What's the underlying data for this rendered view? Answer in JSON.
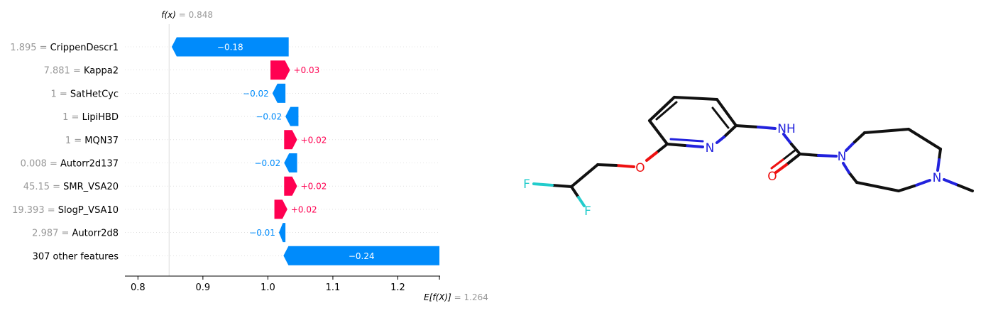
{
  "chart_data": {
    "type": "waterfall",
    "fx_label": "f(x)",
    "fx_value": "0.848",
    "ex_label": "E[f(X)]",
    "ex_value": "1.264",
    "base_value": 1.264,
    "final_value": 0.848,
    "xlim": [
      0.78,
      1.265
    ],
    "xticks": [
      0.8,
      0.9,
      1.0,
      1.1,
      1.2
    ],
    "xtick_labels": [
      "0.8",
      "0.9",
      "1.0",
      "1.1",
      "1.2"
    ],
    "colors": {
      "positive": "#ff0051",
      "negative": "#008bfb",
      "value_text": "#999999"
    },
    "features": [
      {
        "value": "1.895",
        "name": "CrippenDescr1",
        "contribution": -0.18,
        "label": "−0.18",
        "start": 1.032
      },
      {
        "value": "7.881",
        "name": "Kappa2",
        "contribution": 0.03,
        "label": "+0.03",
        "start": 1.004
      },
      {
        "value": "1",
        "name": "SatHetCyc",
        "contribution": -0.02,
        "label": "−0.02",
        "start": 1.027
      },
      {
        "value": "1",
        "name": "LipiHBD",
        "contribution": -0.02,
        "label": "−0.02",
        "start": 1.047
      },
      {
        "value": "1",
        "name": "MQN37",
        "contribution": 0.02,
        "label": "+0.02",
        "start": 1.025
      },
      {
        "value": "0.008",
        "name": "Autorr2d137",
        "contribution": -0.02,
        "label": "−0.02",
        "start": 1.045
      },
      {
        "value": "45.15",
        "name": "SMR_VSA20",
        "contribution": 0.02,
        "label": "+0.02",
        "start": 1.025
      },
      {
        "value": "19.393",
        "name": "SlogP_VSA10",
        "contribution": 0.02,
        "label": "+0.02",
        "start": 1.01
      },
      {
        "value": "2.987",
        "name": "Autorr2d8",
        "contribution": -0.01,
        "label": "−0.01",
        "start": 1.027
      },
      {
        "value": "",
        "name": "307 other features",
        "contribution": -0.24,
        "label": "−0.24",
        "start": 1.264
      }
    ]
  },
  "molecule": {
    "atoms": [
      "N",
      "NH",
      "O",
      "N",
      "O",
      "N",
      "F",
      "F"
    ]
  }
}
